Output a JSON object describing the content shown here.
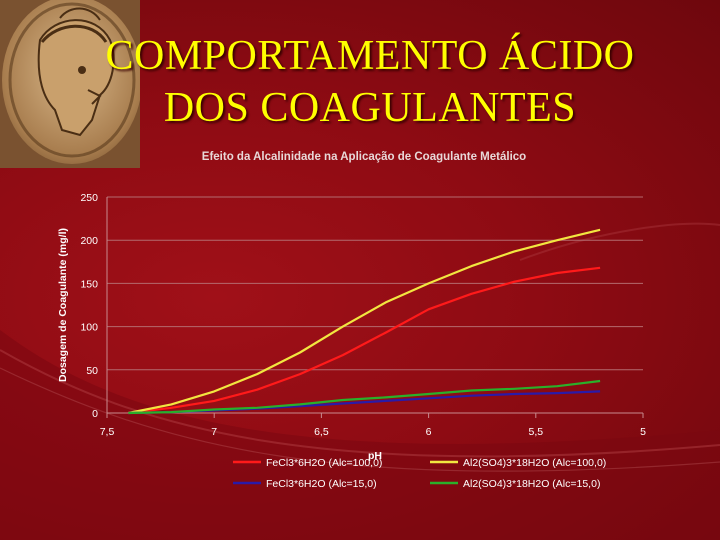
{
  "slide": {
    "title_line1": "COMPORTAMENTO ÁCIDO",
    "title_line2": "DOS COAGULANTES"
  },
  "colors": {
    "background": "#8b0a12",
    "title": "#ffff00",
    "fecl3_alc100": "#ff1a1a",
    "al2so4_alc100": "#f2e640",
    "fecl3_alc15": "#2a1aa8",
    "al2so4_alc15": "#2ab02a"
  },
  "chart_data": {
    "type": "line",
    "title": "Efeito da Alcalinidade na Aplicação de Coagulante Metálico",
    "xlabel": "pH",
    "ylabel": "Dosagem de Coagulante (mg/l)",
    "xlim": [
      7.5,
      5
    ],
    "ylim": [
      0,
      250
    ],
    "x_ticks": [
      "7,5",
      "7",
      "6,5",
      "6",
      "5,5",
      "5"
    ],
    "y_ticks": [
      "0",
      "50",
      "100",
      "150",
      "200",
      "250"
    ],
    "grid": "horizontal",
    "legend_position": "bottom",
    "series": [
      {
        "name": "FeCl3*6H2O (Alc=100,0)",
        "color": "#ff1a1a",
        "x": [
          7.4,
          7.2,
          7.0,
          6.8,
          6.6,
          6.4,
          6.2,
          6.0,
          5.8,
          5.6,
          5.4,
          5.2
        ],
        "y": [
          0,
          6,
          14,
          27,
          45,
          67,
          93,
          120,
          138,
          152,
          162,
          168
        ]
      },
      {
        "name": "Al2(SO4)3*18H2O (Alc=100,0)",
        "color": "#f2e640",
        "x": [
          7.4,
          7.2,
          7.0,
          6.8,
          6.6,
          6.4,
          6.2,
          6.0,
          5.8,
          5.6,
          5.4,
          5.2
        ],
        "y": [
          0,
          10,
          25,
          45,
          70,
          100,
          128,
          150,
          170,
          187,
          200,
          212
        ]
      },
      {
        "name": "FeCl3*6H2O (Alc=15,0)",
        "color": "#2a1aa8",
        "x": [
          7.4,
          7.2,
          7.0,
          6.8,
          6.6,
          6.4,
          6.2,
          6.0,
          5.8,
          5.6,
          5.4,
          5.2
        ],
        "y": [
          0,
          1,
          3,
          5,
          8,
          11,
          14,
          17,
          20,
          22,
          23,
          25
        ]
      },
      {
        "name": "Al2(SO4)3*18H2O (Alc=15,0)",
        "color": "#2ab02a",
        "x": [
          7.4,
          7.2,
          7.0,
          6.8,
          6.6,
          6.4,
          6.2,
          6.0,
          5.8,
          5.6,
          5.4,
          5.2
        ],
        "y": [
          0,
          1,
          4,
          6,
          10,
          15,
          18,
          22,
          26,
          28,
          31,
          37
        ]
      }
    ]
  }
}
